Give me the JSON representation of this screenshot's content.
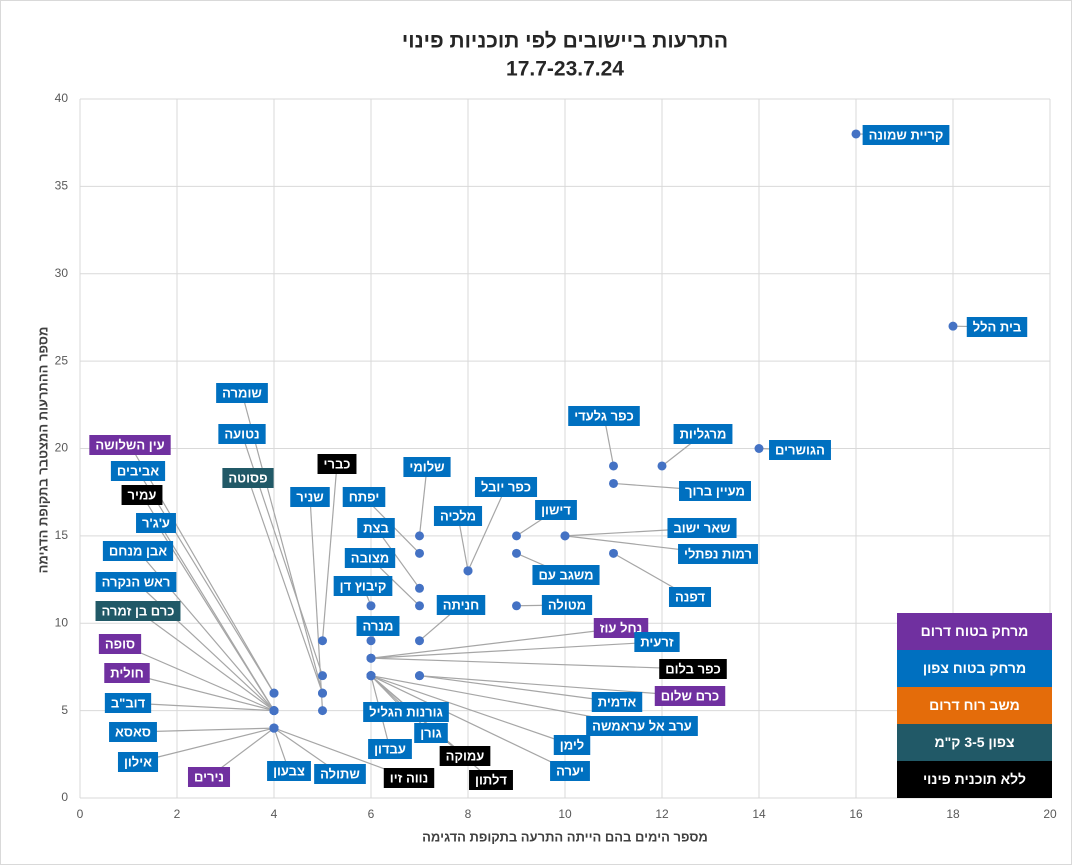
{
  "chart_data": {
    "type": "scatter",
    "title": "התרעות ביישובים לפי תוכניות פינוי",
    "subtitle": "17.7-23.7.24",
    "xlabel": "מספר הימים בהם הייתה התרעה בתקופת הדגימה",
    "ylabel": "מספר ההתרעות המצטבר בתקופת הדגימה",
    "xlim": [
      0,
      20
    ],
    "xticks": [
      0,
      2,
      4,
      6,
      8,
      10,
      12,
      14,
      16,
      18,
      20
    ],
    "ylim": [
      0,
      40
    ],
    "yticks": [
      0,
      5,
      10,
      15,
      20,
      25,
      30,
      35,
      40
    ],
    "grid": true,
    "legend": "lower right",
    "marker_color": "#4472c4",
    "series": [
      {
        "name": "מרחק בטוח דרום",
        "color": "#7030a0",
        "labels": [
          "עין השלושה",
          "סופה",
          "חולית",
          "נירים",
          "נחל עוז",
          "כרם שלום"
        ],
        "x": [
          4,
          4,
          4,
          4,
          6,
          7
        ],
        "values": [
          6,
          5,
          5,
          4,
          8,
          7
        ]
      },
      {
        "name": "מרחק בטוח צפון",
        "color": "#0070c0",
        "labels": [
          "קריית שמונה",
          "בית הלל",
          "הגושרים",
          "מרגליות",
          "כפר גלעדי",
          "מעיין ברוך",
          "שאר ישוב",
          "רמות נפתלי",
          "דפנה",
          "דישון",
          "משגב עם",
          "מטולה",
          "כפר יובל",
          "מלכיה",
          "שלומי",
          "יפתח",
          "בצת",
          "מצובה",
          "חניתה",
          "קיבוץ דן",
          "מנרה",
          "זרעית",
          "ערב אל עראמשה",
          "לימן",
          "יערה",
          "אדמית",
          "גורנות הגליל",
          "גורן",
          "עבדון",
          "שומרה",
          "נטועה",
          "שניר",
          "אביבים",
          "ע'ג'ר",
          "אבן מנחם",
          "ראש הנקרה",
          "דוב\"ב",
          "סאסא",
          "אילון",
          "צבעון",
          "שתולה"
        ],
        "x": [
          16,
          18,
          14,
          12,
          11,
          11,
          10,
          10,
          11,
          9,
          9,
          9,
          8,
          8,
          7,
          7,
          7,
          7,
          7,
          6,
          6,
          6,
          6,
          6,
          6,
          7,
          6,
          6,
          6,
          5,
          5,
          5,
          4,
          4,
          4,
          4,
          4,
          4,
          4,
          4,
          4
        ],
        "values": [
          38,
          27,
          20,
          19,
          19,
          18,
          15,
          15,
          14,
          15,
          14,
          11,
          13,
          13,
          15,
          14,
          12,
          11,
          9,
          11,
          9,
          8,
          7,
          7,
          7,
          7,
          7,
          7,
          7,
          6,
          7,
          5,
          6,
          5,
          5,
          5,
          5,
          4,
          4,
          4,
          4
        ]
      },
      {
        "name": "משב רוח דרום",
        "color": "#e46c0a",
        "labels": [],
        "x": [],
        "values": []
      },
      {
        "name": "צפון 3-5 ק\"מ",
        "color": "#215967",
        "labels": [
          "פסוטה",
          "כרם בן זמרה"
        ],
        "x": [
          5,
          4
        ],
        "values": [
          6,
          5
        ]
      },
      {
        "name": "ללא תוכנית פינוי",
        "color": "#000000",
        "labels": [
          "עמיר",
          "כברי",
          "עמוקה",
          "נווה זיו",
          "דלתון",
          "כפר בלום"
        ],
        "x": [
          4,
          5,
          6,
          4,
          6,
          6
        ],
        "values": [
          5,
          9,
          7,
          4,
          7,
          8
        ]
      }
    ]
  }
}
